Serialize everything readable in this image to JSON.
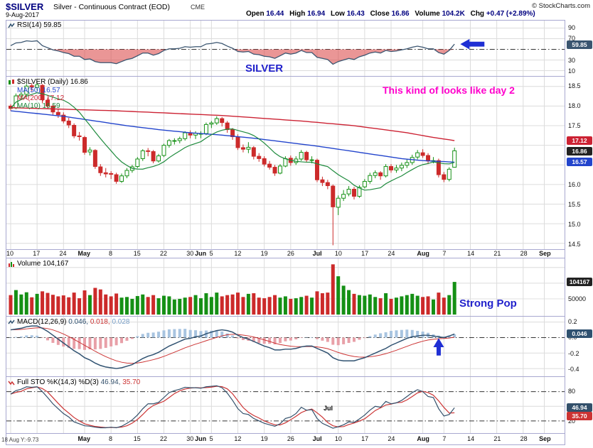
{
  "header": {
    "symbol": "$SILVER",
    "title": "Silver - Continuous Contract (EOD)",
    "exchange": "CME",
    "copyright": "© StockCharts.com",
    "date": "9-Aug-2017",
    "quote": {
      "open_l": "Open",
      "open_v": "16.44",
      "high_l": "High",
      "high_v": "16.94",
      "low_l": "Low",
      "low_v": "16.43",
      "close_l": "Close",
      "close_v": "16.86",
      "vol_l": "Volume",
      "vol_v": "104.2K",
      "chg_l": "Chg",
      "chg_v": "+0.47 (+2.89%)"
    }
  },
  "annotations": {
    "silver": "SILVER",
    "day2": "This kind of looks like day 2",
    "strong_pop": "Strong Pop",
    "corner": "18 Aug Y:-9.73",
    "stray_jul": "Jul"
  },
  "panels": {
    "rsi": {
      "label": "RSI(14) 59.85",
      "last": "59.85",
      "ticks": [
        "90",
        "70",
        "30",
        "10"
      ]
    },
    "price": {
      "label": "$SILVER (Daily) 16.86",
      "ma50_label": "MA(50) 16.57",
      "ma200_label": "MA(200) 17.12",
      "ma10_label": "MA(10) 16.59",
      "last": "16.86",
      "ma50_last": "16.57",
      "ma200_last": "17.12",
      "ticks": [
        "18.5",
        "18.0",
        "17.5",
        "16.0",
        "15.5",
        "15.0",
        "14.5"
      ]
    },
    "volume": {
      "label": "Volume 104,167",
      "last": "104167",
      "ticks": [
        "50000"
      ]
    },
    "macd": {
      "label": "MACD(12,26,9)",
      "v1": "0.046,",
      "v2": "0.018,",
      "v3": "0.028",
      "last": "0.046",
      "ticks": [
        "0.2",
        "0.0",
        "-0.2",
        "-0.4"
      ]
    },
    "sto": {
      "label": "Full STO %K(14,3) %D(3)",
      "k": "46.94,",
      "d": "35.70",
      "k_last": "46.94",
      "d_last": "35.70",
      "ticks": [
        "80",
        "20"
      ]
    }
  },
  "colors": {
    "up": "#159015",
    "down": "#cc2a2a",
    "ma50": "#2244cc",
    "ma200": "#cc2233",
    "ma10": "#1d8a3c",
    "rsi_line": "#3a5570",
    "rsi_fill": "#d94040",
    "macd_line": "#2f5170",
    "signal": "#cc3333",
    "hist_pos": "#a8c4e0",
    "hist_neg": "#e8a0a8",
    "k_line": "#33506b",
    "d_line": "#cc3333",
    "arrow": "#1f2fd4",
    "annotation_blue": "#2222cc",
    "annotation_magenta": "#ff00cc",
    "box_dark": "#222222",
    "grid": "#dcdcdc",
    "border": "#a8a8d0"
  },
  "chart_data": {
    "type": "candlestick",
    "symbol": "$SILVER",
    "timeframe": "Daily",
    "range_note": "Apr 10 2017 through Aug 9 2017, right side padded to early Sep",
    "price_range": [
      14.35,
      18.75
    ],
    "slots_total": 105,
    "columns": [
      "open",
      "high",
      "low",
      "close",
      "volume_k"
    ],
    "bars": [
      [
        18.0,
        18.05,
        17.88,
        17.94,
        62
      ],
      [
        17.95,
        18.32,
        17.92,
        18.26,
        78
      ],
      [
        18.26,
        18.36,
        18.17,
        18.3,
        64
      ],
      [
        18.3,
        18.56,
        18.26,
        18.51,
        71
      ],
      [
        18.52,
        18.58,
        18.38,
        18.49,
        55
      ],
      [
        18.48,
        18.62,
        18.4,
        18.54,
        66
      ],
      [
        18.53,
        18.56,
        18.07,
        18.16,
        74
      ],
      [
        18.15,
        18.22,
        17.93,
        18.0,
        69
      ],
      [
        18.0,
        18.06,
        17.78,
        17.85,
        63
      ],
      [
        17.84,
        17.92,
        17.7,
        17.78,
        58
      ],
      [
        17.77,
        17.84,
        17.56,
        17.62,
        61
      ],
      [
        17.62,
        17.7,
        17.44,
        17.52,
        55
      ],
      [
        17.51,
        17.56,
        17.18,
        17.24,
        70
      ],
      [
        17.24,
        17.34,
        17.12,
        17.22,
        52
      ],
      [
        17.2,
        17.24,
        16.76,
        16.82,
        77
      ],
      [
        16.83,
        16.95,
        16.74,
        16.88,
        62
      ],
      [
        16.87,
        16.9,
        16.4,
        16.46,
        85
      ],
      [
        16.45,
        16.52,
        16.22,
        16.3,
        80
      ],
      [
        16.3,
        16.42,
        16.18,
        16.27,
        64
      ],
      [
        16.28,
        16.34,
        16.14,
        16.26,
        58
      ],
      [
        16.25,
        16.3,
        16.02,
        16.08,
        67
      ],
      [
        16.08,
        16.28,
        16.04,
        16.22,
        54
      ],
      [
        16.22,
        16.42,
        16.16,
        16.36,
        56
      ],
      [
        16.36,
        16.5,
        16.3,
        16.45,
        50
      ],
      [
        16.46,
        16.7,
        16.42,
        16.65,
        59
      ],
      [
        16.66,
        16.9,
        16.6,
        16.86,
        64
      ],
      [
        16.86,
        16.93,
        16.72,
        16.85,
        56
      ],
      [
        16.84,
        16.88,
        16.54,
        16.6,
        62
      ],
      [
        16.6,
        16.78,
        16.56,
        16.73,
        52
      ],
      [
        16.74,
        17.04,
        16.7,
        17.0,
        60
      ],
      [
        17.0,
        17.16,
        16.94,
        17.12,
        58
      ],
      [
        17.12,
        17.18,
        17.02,
        17.12,
        48
      ],
      [
        17.12,
        17.22,
        17.05,
        17.17,
        50
      ],
      [
        17.17,
        17.36,
        17.12,
        17.32,
        54
      ],
      [
        17.3,
        17.38,
        17.18,
        17.26,
        56
      ],
      [
        17.26,
        17.36,
        17.16,
        17.31,
        62
      ],
      [
        17.3,
        17.36,
        17.18,
        17.3,
        52
      ],
      [
        17.3,
        17.58,
        17.26,
        17.53,
        68
      ],
      [
        17.54,
        17.62,
        17.44,
        17.57,
        56
      ],
      [
        17.57,
        17.74,
        17.52,
        17.68,
        70
      ],
      [
        17.68,
        17.72,
        17.48,
        17.58,
        58
      ],
      [
        17.57,
        17.62,
        17.32,
        17.4,
        62
      ],
      [
        17.4,
        17.44,
        17.14,
        17.22,
        64
      ],
      [
        17.21,
        17.28,
        16.88,
        16.94,
        70
      ],
      [
        16.94,
        17.02,
        16.82,
        16.9,
        56
      ],
      [
        16.9,
        17.08,
        16.8,
        16.95,
        66
      ],
      [
        16.94,
        16.98,
        16.64,
        16.72,
        68
      ],
      [
        16.72,
        16.8,
        16.58,
        16.66,
        54
      ],
      [
        16.66,
        16.72,
        16.46,
        16.52,
        52
      ],
      [
        16.52,
        16.6,
        16.38,
        16.44,
        56
      ],
      [
        16.44,
        16.5,
        16.22,
        16.29,
        62
      ],
      [
        16.29,
        16.52,
        16.26,
        16.47,
        54
      ],
      [
        16.47,
        16.72,
        16.44,
        16.66,
        58
      ],
      [
        16.67,
        16.74,
        16.48,
        16.56,
        50
      ],
      [
        16.56,
        16.72,
        16.5,
        16.65,
        52
      ],
      [
        16.65,
        16.88,
        16.6,
        16.82,
        56
      ],
      [
        16.82,
        16.86,
        16.56,
        16.63,
        60
      ],
      [
        16.63,
        16.72,
        16.54,
        16.63,
        54
      ],
      [
        16.62,
        16.66,
        16.06,
        16.12,
        74
      ],
      [
        16.12,
        16.2,
        15.96,
        16.05,
        68
      ],
      [
        16.05,
        16.12,
        15.88,
        15.97,
        70
      ],
      [
        15.96,
        16.0,
        14.45,
        15.43,
        160
      ],
      [
        15.42,
        15.72,
        15.22,
        15.65,
        122
      ],
      [
        15.65,
        15.86,
        15.58,
        15.75,
        92
      ],
      [
        15.76,
        15.96,
        15.7,
        15.88,
        78
      ],
      [
        15.88,
        15.94,
        15.62,
        15.7,
        66
      ],
      [
        15.7,
        15.98,
        15.66,
        15.93,
        62
      ],
      [
        15.94,
        16.14,
        15.9,
        16.08,
        60
      ],
      [
        16.08,
        16.3,
        16.02,
        16.23,
        64
      ],
      [
        16.23,
        16.36,
        16.16,
        16.3,
        56
      ],
      [
        16.3,
        16.34,
        16.12,
        16.22,
        52
      ],
      [
        16.22,
        16.52,
        16.18,
        16.46,
        68
      ],
      [
        16.46,
        16.52,
        16.3,
        16.37,
        50
      ],
      [
        16.37,
        16.5,
        16.3,
        16.42,
        54
      ],
      [
        16.42,
        16.56,
        16.34,
        16.49,
        58
      ],
      [
        16.49,
        16.64,
        16.42,
        16.56,
        62
      ],
      [
        16.56,
        16.76,
        16.5,
        16.69,
        66
      ],
      [
        16.7,
        16.88,
        16.64,
        16.81,
        60
      ],
      [
        16.81,
        16.9,
        16.68,
        16.74,
        56
      ],
      [
        16.74,
        16.8,
        16.52,
        16.6,
        58
      ],
      [
        16.6,
        16.7,
        16.54,
        16.61,
        48
      ],
      [
        16.61,
        16.66,
        16.18,
        16.25,
        70
      ],
      [
        16.25,
        16.32,
        16.06,
        16.13,
        54
      ],
      [
        16.13,
        16.44,
        16.08,
        16.39,
        62
      ],
      [
        16.44,
        16.94,
        16.43,
        16.86,
        104
      ]
    ],
    "rsi": [
      57,
      62,
      63,
      66,
      65,
      66,
      57,
      53,
      49,
      47,
      44,
      42,
      37,
      37,
      31,
      32,
      27,
      25,
      25,
      25,
      23,
      27,
      31,
      33,
      38,
      43,
      43,
      39,
      42,
      48,
      51,
      51,
      52,
      55,
      54,
      55,
      55,
      60,
      61,
      63,
      61,
      56,
      52,
      46,
      45,
      46,
      41,
      40,
      37,
      36,
      33,
      38,
      43,
      41,
      43,
      48,
      44,
      44,
      35,
      33,
      31,
      22,
      27,
      30,
      33,
      31,
      36,
      39,
      43,
      45,
      43,
      48,
      46,
      47,
      49,
      51,
      54,
      56,
      54,
      51,
      51,
      44,
      41,
      48,
      59.85
    ],
    "macd_line": [
      0.1,
      0.11,
      0.12,
      0.14,
      0.15,
      0.15,
      0.12,
      0.08,
      0.03,
      -0.02,
      -0.07,
      -0.12,
      -0.17,
      -0.21,
      -0.26,
      -0.29,
      -0.33,
      -0.36,
      -0.38,
      -0.39,
      -0.4,
      -0.39,
      -0.37,
      -0.35,
      -0.31,
      -0.27,
      -0.24,
      -0.22,
      -0.19,
      -0.15,
      -0.11,
      -0.08,
      -0.05,
      -0.02,
      -0.01,
      0.01,
      0.02,
      0.05,
      0.07,
      0.09,
      0.1,
      0.09,
      0.07,
      0.03,
      0.0,
      -0.02,
      -0.05,
      -0.08,
      -0.11,
      -0.13,
      -0.16,
      -0.16,
      -0.15,
      -0.15,
      -0.14,
      -0.12,
      -0.11,
      -0.11,
      -0.14,
      -0.17,
      -0.2,
      -0.26,
      -0.29,
      -0.3,
      -0.3,
      -0.3,
      -0.28,
      -0.26,
      -0.23,
      -0.2,
      -0.17,
      -0.14,
      -0.1,
      -0.07,
      -0.04,
      -0.01,
      0.01,
      0.02,
      0.03,
      0.03,
      0.02,
      0.01,
      0.0,
      0.02,
      0.046
    ],
    "sto_k": [
      75,
      82,
      85,
      90,
      89,
      90,
      80,
      68,
      55,
      45,
      35,
      28,
      18,
      14,
      10,
      9,
      7,
      6,
      6,
      7,
      6,
      9,
      15,
      22,
      32,
      45,
      55,
      55,
      58,
      68,
      78,
      82,
      85,
      89,
      88,
      88,
      87,
      90,
      91,
      92,
      88,
      77,
      62,
      45,
      35,
      33,
      25,
      20,
      15,
      12,
      9,
      14,
      25,
      28,
      35,
      48,
      42,
      43,
      25,
      15,
      10,
      5,
      8,
      12,
      18,
      17,
      24,
      32,
      42,
      50,
      48,
      60,
      55,
      57,
      62,
      70,
      78,
      84,
      80,
      70,
      68,
      45,
      30,
      33,
      46.94
    ],
    "ma50_waypoints": [
      [
        0,
        17.88
      ],
      [
        10,
        17.74
      ],
      [
        16,
        17.62
      ],
      [
        22,
        17.5
      ],
      [
        28,
        17.4
      ],
      [
        34,
        17.32
      ],
      [
        40,
        17.26
      ],
      [
        46,
        17.18
      ],
      [
        52,
        17.08
      ],
      [
        58,
        16.98
      ],
      [
        62,
        16.9
      ],
      [
        66,
        16.82
      ],
      [
        70,
        16.74
      ],
      [
        74,
        16.66
      ],
      [
        78,
        16.61
      ],
      [
        84,
        16.57
      ]
    ],
    "ma200_waypoints": [
      [
        0,
        17.96
      ],
      [
        20,
        17.88
      ],
      [
        40,
        17.76
      ],
      [
        55,
        17.62
      ],
      [
        65,
        17.5
      ],
      [
        75,
        17.32
      ],
      [
        80,
        17.2
      ],
      [
        84,
        17.12
      ]
    ],
    "rsi_mid_line": 50,
    "sto_bands": [
      80,
      20
    ],
    "volume_max_k": 170,
    "x_ticks": [
      {
        "s": 0,
        "t": "10"
      },
      {
        "s": 5,
        "t": "17"
      },
      {
        "s": 10,
        "t": "24"
      },
      {
        "s": 14,
        "t": "May",
        "m": true
      },
      {
        "s": 19,
        "t": "8"
      },
      {
        "s": 24,
        "t": "15"
      },
      {
        "s": 29,
        "t": "22"
      },
      {
        "s": 34,
        "t": "30"
      },
      {
        "s": 36,
        "t": "Jun",
        "m": true
      },
      {
        "s": 38,
        "t": "5"
      },
      {
        "s": 43,
        "t": "12"
      },
      {
        "s": 48,
        "t": "19"
      },
      {
        "s": 53,
        "t": "26"
      },
      {
        "s": 58,
        "t": "Jul",
        "m": true
      },
      {
        "s": 62,
        "t": "10"
      },
      {
        "s": 67,
        "t": "17"
      },
      {
        "s": 72,
        "t": "24"
      },
      {
        "s": 78,
        "t": "Aug",
        "m": true
      },
      {
        "s": 82,
        "t": "7"
      },
      {
        "s": 87,
        "t": "14"
      },
      {
        "s": 92,
        "t": "21"
      },
      {
        "s": 97,
        "t": "28"
      },
      {
        "s": 101,
        "t": "Sep",
        "m": true
      }
    ]
  }
}
